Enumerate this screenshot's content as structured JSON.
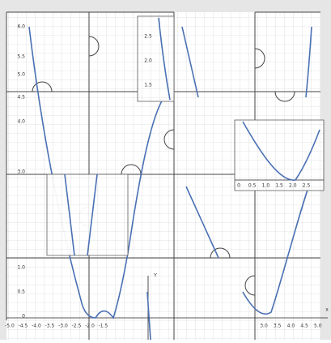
{
  "board": {
    "y_labels_top": [
      "6.0",
      "5.5",
      "5.0",
      "4.5",
      "4.0",
      "3.0"
    ],
    "y_labels_bottom": [
      "1.0",
      "0.5",
      "0"
    ],
    "x_labels_left": [
      "-5.0",
      "-4.5",
      "-4.0",
      "-3.5",
      "-3.0",
      "-2.5",
      "-2.0",
      "-1.5"
    ],
    "x_labels_right": [
      "3.0",
      "3.5",
      "4.0",
      "4.5",
      "5.0"
    ],
    "x_axis_name": "x",
    "y_axis_name": "Y"
  },
  "pieces": [
    {
      "labels": [
        "2.5",
        "2.0",
        "1.5"
      ]
    },
    {
      "labels": [
        "0",
        "0.5",
        "1.0",
        "1.5",
        "2.0",
        "2.5"
      ]
    }
  ]
}
